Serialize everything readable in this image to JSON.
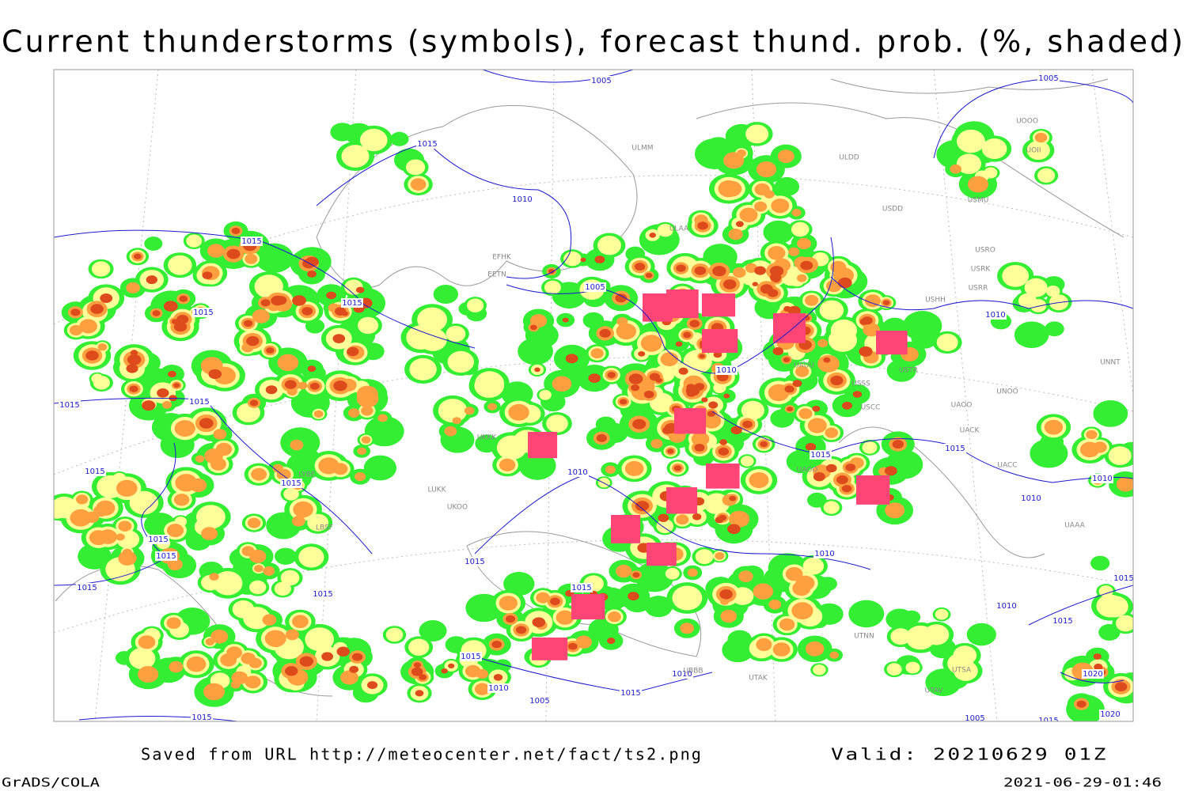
{
  "title": "Current thunderstorms (symbols), forecast thund. prob. (%, shaded)",
  "footer": {
    "source": "Saved from URL http://meteocenter.net/fact/ts2.png",
    "valid": "Valid: 20210629 01Z",
    "software": "GrADS/COLA",
    "timestamp": "2021-06-29-01:46"
  },
  "map": {
    "isobar_labels": [
      "1005",
      "1005",
      "1015",
      "1010",
      "1015",
      "1005",
      "1015",
      "1015",
      "1010",
      "1010",
      "1015",
      "1015",
      "1015",
      "1015",
      "1015",
      "1010",
      "1015",
      "1010",
      "1010",
      "1015",
      "1010",
      "1015",
      "1015",
      "1015",
      "1015",
      "1015",
      "1015",
      "1010",
      "1015",
      "1015",
      "1010",
      "1020",
      "1010",
      "1015",
      "1005",
      "1015",
      "1020",
      "1005",
      "1015"
    ],
    "station_labels": [
      "ULMM",
      "ULDD",
      "ULAA",
      "USDD",
      "USMU",
      "UOII",
      "UOOO",
      "USRO",
      "USRK",
      "USRR",
      "USHH",
      "EFHK",
      "EETN",
      "UNNT",
      "UNOO",
      "UACC",
      "UAAA",
      "USSS",
      "USTR",
      "UACK",
      "UAOO",
      "UAUU",
      "USCC",
      "UTSA",
      "UTAK",
      "UTAV",
      "UTNN",
      "UBBB",
      "UAOO",
      "UKKK",
      "LYBE",
      "LBSF",
      "LUKK",
      "UKOO"
    ]
  }
}
